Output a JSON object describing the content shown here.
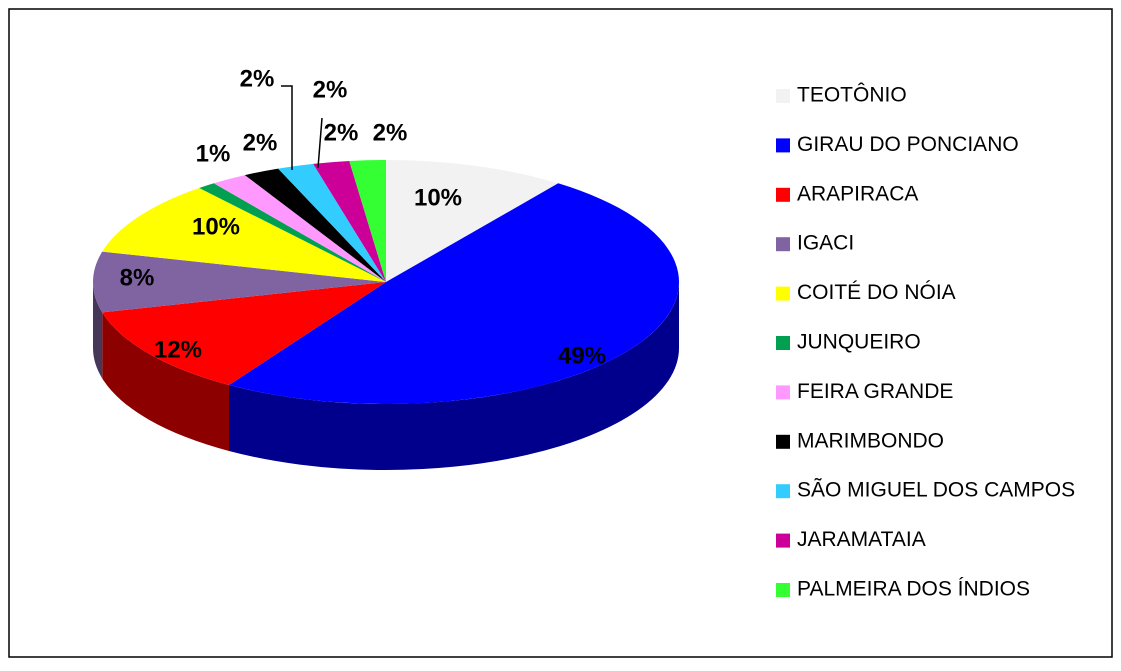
{
  "chart_data": {
    "type": "pie",
    "categories": [
      "TEOTÔNIO",
      "GIRAU DO PONCIANO",
      "ARAPIRACA",
      "IGACI",
      "COITÉ DO NÓIA",
      "JUNQUEIRO",
      "FEIRA GRANDE",
      "MARIMBONDO",
      "SÃO MIGUEL DOS CAMPOS",
      "JARAMATAIA",
      "PALMEIRA DOS ÍNDIOS"
    ],
    "values": [
      10,
      49,
      12,
      8,
      10,
      1,
      2,
      2,
      2,
      2,
      2
    ],
    "value_labels": [
      "10%",
      "49%",
      "12%",
      "8%",
      "10%",
      "1%",
      "2%",
      "2%",
      "2%",
      "2%",
      "2%"
    ],
    "colors": [
      "#f2f2f2",
      "#0000ff",
      "#ff0000",
      "#8064a2",
      "#ffff00",
      "#00a050",
      "#ff99ff",
      "#000000",
      "#33ccff",
      "#cc0099",
      "#33ff33"
    ],
    "legend": "right"
  }
}
